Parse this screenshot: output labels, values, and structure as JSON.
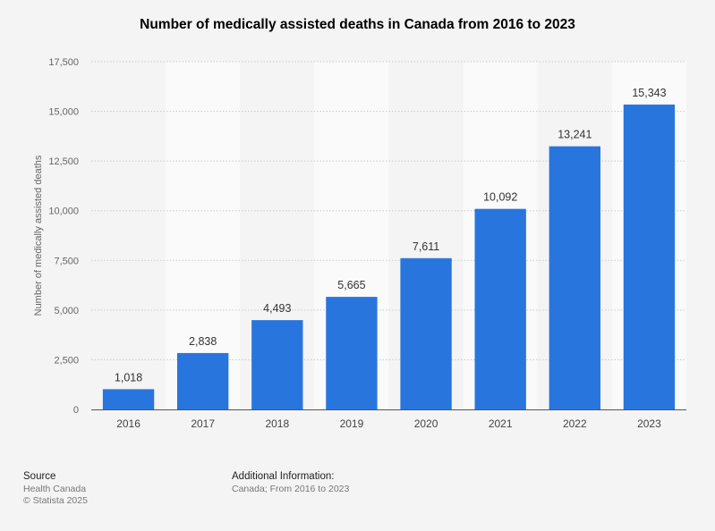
{
  "title": "Number of medically assisted deaths in Canada from 2016 to 2023",
  "colors": {
    "bar": "#2876dd",
    "band": "#fafafa",
    "grid": "#c9c9c9",
    "axis": "#555555",
    "background": "#f4f4f4"
  },
  "chart_data": {
    "type": "bar",
    "title": "Number of medically assisted deaths in Canada from 2016 to 2023",
    "xlabel": "",
    "ylabel": "Number of medically assisted deaths",
    "categories": [
      "2016",
      "2017",
      "2018",
      "2019",
      "2020",
      "2021",
      "2022",
      "2023"
    ],
    "values": [
      1018,
      2838,
      4493,
      5665,
      7611,
      10092,
      13241,
      15343
    ],
    "value_labels": [
      "1,018",
      "2,838",
      "4,493",
      "5,665",
      "7,611",
      "10,092",
      "13,241",
      "15,343"
    ],
    "ylim": [
      0,
      17500
    ],
    "yticks": [
      0,
      2500,
      5000,
      7500,
      10000,
      12500,
      15000,
      17500
    ],
    "ytick_labels": [
      "0",
      "2,500",
      "5,000",
      "7,500",
      "10,000",
      "12,500",
      "15,000",
      "17,500"
    ],
    "grid": true
  },
  "source": {
    "heading": "Source",
    "lines": [
      "Health Canada",
      "© Statista 2025"
    ]
  },
  "additional": {
    "heading": "Additional Information:",
    "text": "Canada; From 2016 to 2023"
  }
}
